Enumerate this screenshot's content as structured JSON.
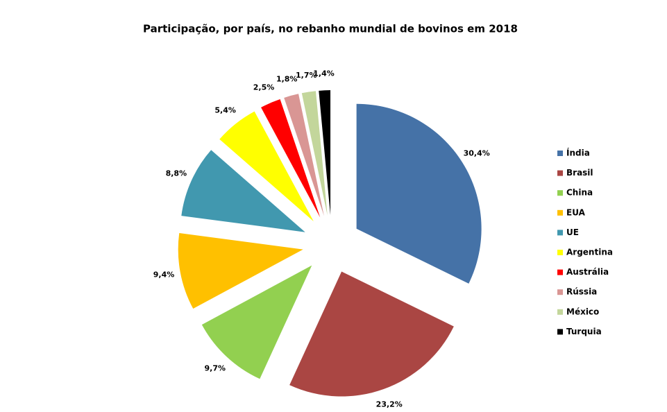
{
  "chart_data": {
    "type": "pie",
    "title": "Participação, por país, no rebanho mundial de bovinos em 2018",
    "categories": [
      "Índia",
      "Brasil",
      "China",
      "EUA",
      "UE",
      "Argentina",
      "Austrália",
      "Rússia",
      "México",
      "Turquia"
    ],
    "values": [
      30.4,
      23.2,
      9.7,
      9.4,
      8.8,
      5.4,
      2.5,
      1.8,
      1.7,
      1.4
    ],
    "value_labels": [
      "30,4%",
      "23,2%",
      "9,7%",
      "9,4%",
      "8,8%",
      "5,4%",
      "2,5%",
      "1,8%",
      "1,7%",
      "1,4%"
    ],
    "colors": [
      "#4572a7",
      "#aa4643",
      "#92d050",
      "#ffc000",
      "#4198af",
      "#ffff00",
      "#ff0000",
      "#d99694",
      "#c3d69b",
      "#000000"
    ],
    "legend": "right"
  }
}
